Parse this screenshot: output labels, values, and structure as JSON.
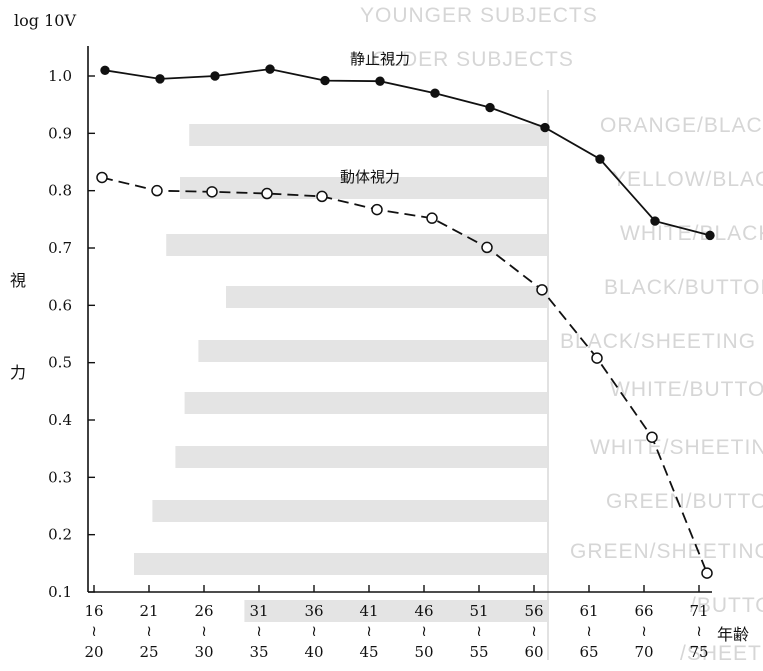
{
  "chart_data": {
    "type": "line",
    "ylabel_top": "log 10V",
    "ylabel_side": [
      "視",
      "力"
    ],
    "xlabel": "年齢",
    "ylim": [
      0.1,
      1.0
    ],
    "yticks": [
      "0.1",
      "0.2",
      "0.3",
      "0.4",
      "0.5",
      "0.6",
      "0.7",
      "0.8",
      "0.9",
      "1.0"
    ],
    "categories": [
      {
        "top": "16",
        "sep": "≀",
        "bottom": "20"
      },
      {
        "top": "21",
        "sep": "≀",
        "bottom": "25"
      },
      {
        "top": "26",
        "sep": "≀",
        "bottom": "30"
      },
      {
        "top": "31",
        "sep": "≀",
        "bottom": "35"
      },
      {
        "top": "36",
        "sep": "≀",
        "bottom": "40"
      },
      {
        "top": "41",
        "sep": "≀",
        "bottom": "45"
      },
      {
        "top": "46",
        "sep": "≀",
        "bottom": "50"
      },
      {
        "top": "51",
        "sep": "≀",
        "bottom": "55"
      },
      {
        "top": "56",
        "sep": "≀",
        "bottom": "60"
      },
      {
        "top": "61",
        "sep": "≀",
        "bottom": "65"
      },
      {
        "top": "66",
        "sep": "≀",
        "bottom": "70"
      },
      {
        "top": "71",
        "sep": "≀",
        "bottom": "75"
      }
    ],
    "series": [
      {
        "name": "静止視力",
        "marker": "filled",
        "line": "solid",
        "values": [
          1.01,
          0.995,
          1.0,
          1.012,
          0.992,
          0.991,
          0.97,
          0.945,
          0.91,
          0.855,
          0.747,
          0.722
        ]
      },
      {
        "name": "動体視力",
        "marker": "open",
        "line": "dashed",
        "values": [
          0.823,
          0.8,
          0.798,
          0.795,
          0.79,
          0.767,
          0.752,
          0.701,
          0.627,
          0.508,
          0.37,
          0.133
        ]
      }
    ],
    "grid": false,
    "background_ghost_text": [
      "YOUNGER SUBJECTS",
      "OLDER SUBJECTS",
      "ORANGE/BLACK",
      "YELLOW/BLACK",
      "WHITE/BLACK",
      "BLACK/BUTTON",
      "BLACK/SHEETING",
      "WHITE/BUTTON",
      "WHITE/SHEETING",
      "GREEN/BUTTON",
      "GREEN/SHEETING",
      "/BUTTON",
      "/SHEETING"
    ],
    "background_ghost_bar_fractions": [
      0.78,
      0.8,
      0.83,
      0.7,
      0.76,
      0.79,
      0.81,
      0.86,
      0.9,
      0.66
    ]
  }
}
